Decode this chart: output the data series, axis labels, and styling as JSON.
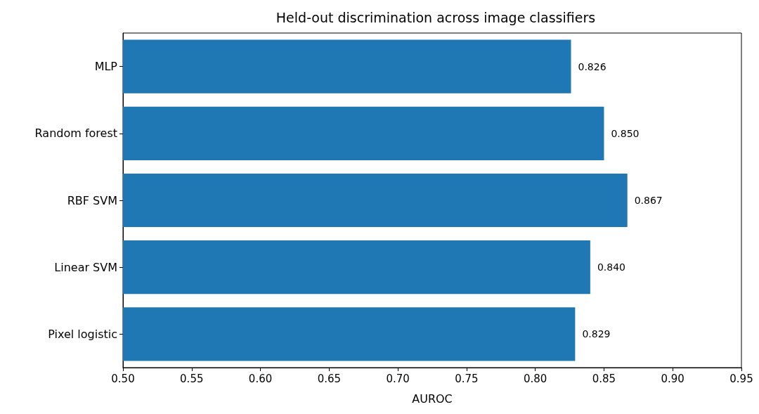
{
  "chart_data": {
    "type": "bar",
    "orientation": "horizontal",
    "title": "Held-out discrimination across image classifiers",
    "xlabel": "AUROC",
    "categories": [
      "MLP",
      "Random forest",
      "RBF SVM",
      "Linear SVM",
      "Pixel logistic"
    ],
    "values": [
      0.826,
      0.85,
      0.867,
      0.84,
      0.829
    ],
    "value_labels": [
      "0.826",
      "0.850",
      "0.867",
      "0.840",
      "0.829"
    ],
    "color": "#1f77b4",
    "xlim": [
      0.5,
      0.95
    ],
    "xticks": [
      {
        "value": 0.5,
        "label": "0.50"
      },
      0.55,
      {
        "value": 0.6,
        "label": "0.60"
      },
      0.65,
      {
        "value": 0.7,
        "label": "0.70"
      },
      0.75,
      {
        "value": 0.8,
        "label": "0.80"
      },
      0.85,
      {
        "value": 0.9,
        "label": "0.90"
      },
      0.95
    ],
    "grid": false
  }
}
